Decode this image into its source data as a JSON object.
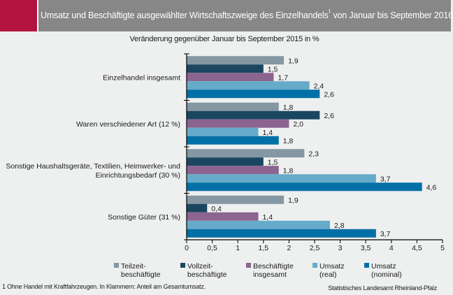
{
  "header": {
    "title": "Umsatz und Beschäftigte ausgewählter Wirtschaftszweige des Einzelhandels",
    "title_sup": "1",
    "title_suffix": " von Januar bis September 2016",
    "brand_color": "#b5133f"
  },
  "footer": {
    "note": "1 Ohne Handel mit Kraftfahrzeugen. In Klammern: Anteil am Gesamtumsatz.",
    "source": "Statistisches Landesamt Rheinland-Pfalz"
  },
  "chart_data": {
    "type": "bar",
    "orientation": "horizontal",
    "title": "Umsatz und Beschäftigte ausgewählter Wirtschaftszweige des Einzelhandels¹ von Januar bis September 2016",
    "subtitle": "Veränderung gegenüber Januar bis September 2015 in %",
    "xlabel": "",
    "ylabel": "",
    "xlim": [
      0,
      5
    ],
    "xticks": [
      0,
      0.5,
      1,
      1.5,
      2,
      2.5,
      3,
      3.5,
      4,
      4.5,
      5
    ],
    "xtick_labels": [
      "0",
      "0,5",
      "1",
      "1,5",
      "2",
      "2,5",
      "3",
      "3,5",
      "4",
      "4,5",
      "5"
    ],
    "grid": false,
    "legend_position": "bottom",
    "categories": [
      [
        "Einzelhandel insgesamt"
      ],
      [
        "Waren verschiedener Art (12 %)"
      ],
      [
        "Sonstige Haushaltsgeräte, Textilien, Heimwerker- und",
        "Einrichtungsbedarf (30 %)"
      ],
      [
        "Sonstige Güter (31 %)"
      ]
    ],
    "series": [
      {
        "name": "Teilzeit-\nbeschäftigte",
        "legend_lines": [
          "Teilzeit-",
          "beschäftigte"
        ],
        "color": "#8497a3",
        "values": [
          1.9,
          1.8,
          2.3,
          1.9
        ],
        "labels": [
          "1,9",
          "1,8",
          "2,3",
          "1,9"
        ]
      },
      {
        "name": "Vollzeit-\nbeschäftigte",
        "legend_lines": [
          "Vollzeit-",
          "beschäftigte"
        ],
        "color": "#1b4660",
        "values": [
          1.5,
          2.6,
          1.5,
          0.4
        ],
        "labels": [
          "1,5",
          "2,6",
          "1,5",
          "0,4"
        ]
      },
      {
        "name": "Beschäftigte\ninsgesamt",
        "legend_lines": [
          "Beschäftigte",
          "insgesamt"
        ],
        "color": "#8c6490",
        "values": [
          1.7,
          2.0,
          1.8,
          1.4
        ],
        "labels": [
          "1,7",
          "2,0",
          "1,8",
          "1,4"
        ]
      },
      {
        "name": "Umsatz\n(real)",
        "legend_lines": [
          "Umsatz",
          "(real)"
        ],
        "color": "#66abc9",
        "values": [
          2.4,
          1.4,
          3.7,
          2.8
        ],
        "labels": [
          "2,4",
          "1,4",
          "3,7",
          "2,8"
        ]
      },
      {
        "name": "Umsatz\n(nominal)",
        "legend_lines": [
          "Umsatz",
          "(nominal)"
        ],
        "color": "#0070a6",
        "values": [
          2.6,
          1.8,
          4.6,
          3.7
        ],
        "labels": [
          "2,6",
          "1,8",
          "4,6",
          "3,7"
        ]
      }
    ]
  }
}
